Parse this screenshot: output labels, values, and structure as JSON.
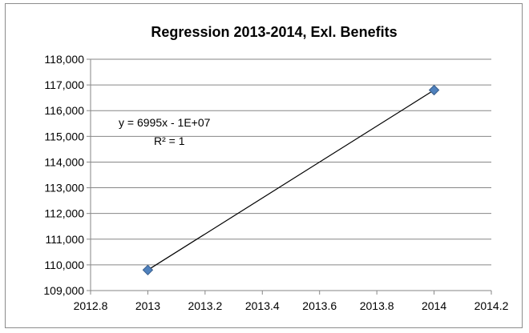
{
  "chart_data": {
    "type": "scatter",
    "title": "Regression 2013-2014, Exl. Benefits",
    "xlabel": "",
    "ylabel": "",
    "xlim": [
      2012.8,
      2014.2
    ],
    "ylim": [
      109000,
      118000
    ],
    "x_ticks": [
      2012.8,
      2013,
      2013.2,
      2013.4,
      2013.6,
      2013.8,
      2014,
      2014.2
    ],
    "x_tick_labels": [
      "2012.8",
      "2013",
      "2013.2",
      "2013.4",
      "2013.6",
      "2013.8",
      "2014",
      "2014.2"
    ],
    "y_ticks": [
      109000,
      110000,
      111000,
      112000,
      113000,
      114000,
      115000,
      116000,
      117000,
      118000
    ],
    "y_tick_labels": [
      "109,000",
      "110,000",
      "111,000",
      "112,000",
      "113,000",
      "114,000",
      "115,000",
      "116,000",
      "117,000",
      "118,000"
    ],
    "grid": true,
    "series": [
      {
        "points": [
          {
            "x": 2013,
            "y": 109800
          },
          {
            "x": 2014,
            "y": 116800
          }
        ],
        "marker": "diamond",
        "color": "#4f81bd"
      }
    ],
    "trendline": {
      "type": "linear",
      "equation": "y = 6995x - 1E+07",
      "r_squared": "R² = 1",
      "color": "#000000"
    }
  }
}
